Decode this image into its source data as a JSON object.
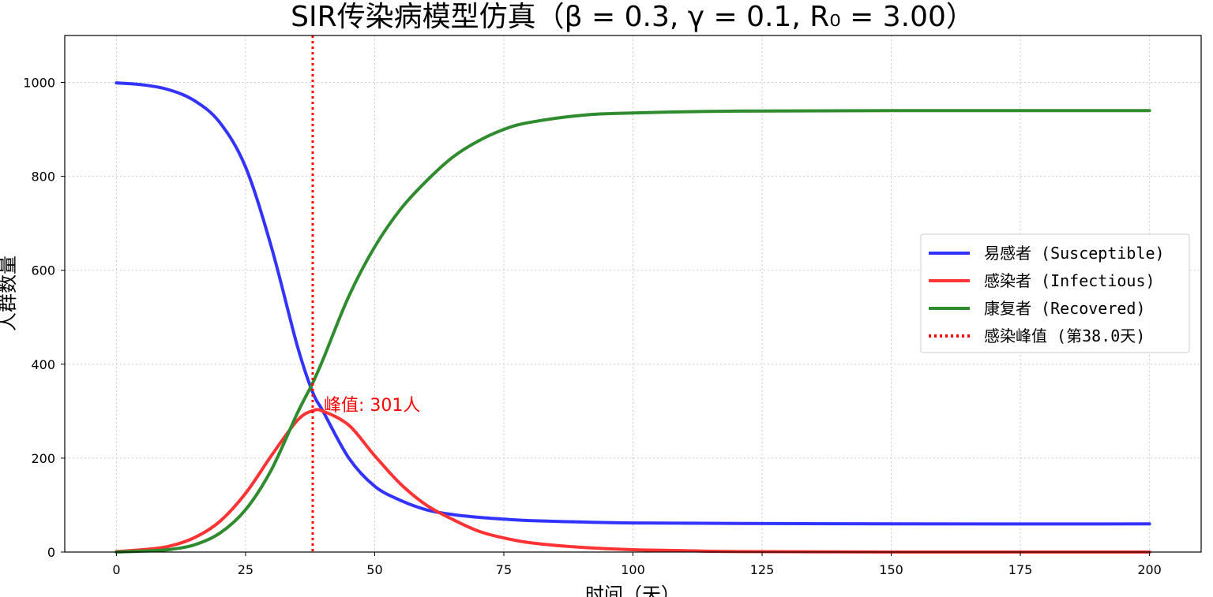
{
  "chart_data": {
    "type": "line",
    "title": "SIR传染病模型仿真（β = 0.3, γ = 0.1, R₀ = 3.00）",
    "xlabel": "时间（天）",
    "ylabel": "人群数量",
    "xlim": [
      -10,
      210
    ],
    "ylim": [
      0,
      1100
    ],
    "xticks": [
      0,
      25,
      50,
      75,
      100,
      125,
      150,
      175,
      200
    ],
    "yticks": [
      0,
      200,
      400,
      600,
      800,
      1000
    ],
    "grid": true,
    "legend_position": "center-right",
    "series": [
      {
        "name": "易感者 (Susceptible)",
        "color": "#3333ff",
        "style": "solid",
        "x": [
          0,
          5,
          10,
          15,
          20,
          25,
          30,
          35,
          38,
          40,
          45,
          50,
          55,
          60,
          65,
          70,
          75,
          80,
          90,
          100,
          120,
          150,
          200
        ],
        "y": [
          999,
          995,
          985,
          962,
          915,
          820,
          650,
          440,
          340,
          300,
          200,
          140,
          110,
          90,
          80,
          74,
          70,
          67,
          64,
          62,
          61,
          60,
          60
        ]
      },
      {
        "name": "感染者 (Infectious)",
        "color": "#ff3333",
        "style": "solid",
        "x": [
          0,
          5,
          10,
          15,
          20,
          25,
          30,
          35,
          38,
          40,
          45,
          50,
          55,
          60,
          65,
          70,
          75,
          80,
          90,
          100,
          110,
          120,
          150,
          200
        ],
        "y": [
          1,
          5,
          12,
          30,
          65,
          125,
          205,
          280,
          301,
          300,
          270,
          205,
          145,
          100,
          70,
          45,
          30,
          20,
          10,
          5,
          3,
          1,
          0,
          0
        ]
      },
      {
        "name": "康复者 (Recovered)",
        "color": "#2e8b2e",
        "style": "solid",
        "x": [
          0,
          5,
          10,
          15,
          20,
          25,
          30,
          35,
          38,
          40,
          45,
          50,
          55,
          60,
          65,
          70,
          75,
          80,
          90,
          100,
          120,
          150,
          200
        ],
        "y": [
          0,
          2,
          5,
          15,
          40,
          90,
          175,
          295,
          360,
          410,
          545,
          650,
          730,
          790,
          840,
          875,
          900,
          915,
          930,
          935,
          939,
          940,
          940
        ]
      }
    ],
    "vline": {
      "label": "感染峰值 (第38.0天)",
      "x": 38.0,
      "color": "#ff0000",
      "style": "dotted"
    },
    "annotation": {
      "text": "峰值: 301人",
      "x": 38.0,
      "y": 301,
      "color": "#ff0000"
    }
  }
}
